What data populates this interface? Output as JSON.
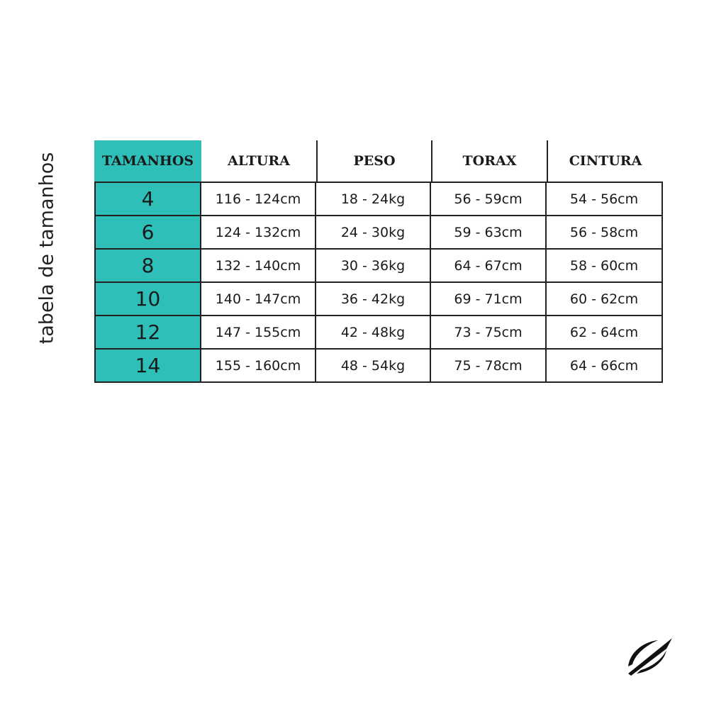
{
  "side_title": "tabela de tamanhos",
  "colors": {
    "accent": "#2ebfb9"
  },
  "headers": [
    "TAMANHOS",
    "ALTURA",
    "PESO",
    "TORAX",
    "CINTURA"
  ],
  "rows": [
    [
      "4",
      "116 - 124cm",
      "18 - 24kg",
      "56 - 59cm",
      "54 - 56cm"
    ],
    [
      "6",
      "124 - 132cm",
      "24 - 30kg",
      "59 - 63cm",
      "56 - 58cm"
    ],
    [
      "8",
      "132 - 140cm",
      "30 - 36kg",
      "64 - 67cm",
      "58 - 60cm"
    ],
    [
      "10",
      "140 - 147cm",
      "36 - 42kg",
      "69 - 71cm",
      "60 - 62cm"
    ],
    [
      "12",
      "147 - 155cm",
      "42 - 48kg",
      "73 - 75cm",
      "62 - 64cm"
    ],
    [
      "14",
      "155 - 160cm",
      "48 - 54kg",
      "75 - 78cm",
      "64 - 66cm"
    ]
  ],
  "logo": "brand-logo"
}
